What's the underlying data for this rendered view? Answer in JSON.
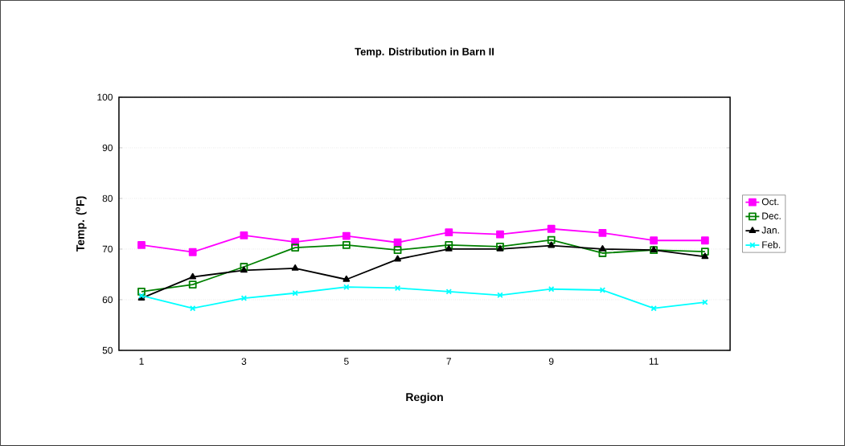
{
  "chart_data": {
    "type": "line",
    "title": "Temp. Distribution in Barn II",
    "xlabel": "Region",
    "ylabel": "Temp. ($^{o}$F)",
    "categories": [
      "1",
      null,
      "3",
      null,
      "5",
      null,
      "7",
      null,
      "9",
      null,
      "11",
      null
    ],
    "series": [
      {
        "name": "Oct.",
        "color": "#ff00ff",
        "marker": "square",
        "values": [
          70.8,
          69.4,
          72.7,
          71.4,
          72.6,
          71.3,
          73.3,
          72.9,
          74.0,
          73.2,
          71.7,
          71.7
        ]
      },
      {
        "name": "Dec.",
        "color": "#008000",
        "marker": "square-open",
        "values": [
          61.6,
          63.0,
          66.5,
          70.3,
          70.8,
          69.8,
          70.8,
          70.5,
          71.8,
          69.2,
          69.8,
          69.5
        ]
      },
      {
        "name": "Jan.",
        "color": "#000000",
        "marker": "triangle",
        "values": [
          60.3,
          64.5,
          65.8,
          66.2,
          64.0,
          68.0,
          70.0,
          70.0,
          70.7,
          70.0,
          69.8,
          68.5
        ]
      },
      {
        "name": "Feb.",
        "color": "#00ffff",
        "marker": "cross",
        "values": [
          60.8,
          58.3,
          60.3,
          61.3,
          62.5,
          62.3,
          61.6,
          60.9,
          62.1,
          61.9,
          58.3,
          59.5
        ]
      }
    ],
    "ylim": [
      50,
      100
    ],
    "yticks": [
      50,
      60,
      70,
      80,
      90,
      100
    ],
    "grid": "y",
    "legend": "right",
    "line_style": "solid"
  }
}
